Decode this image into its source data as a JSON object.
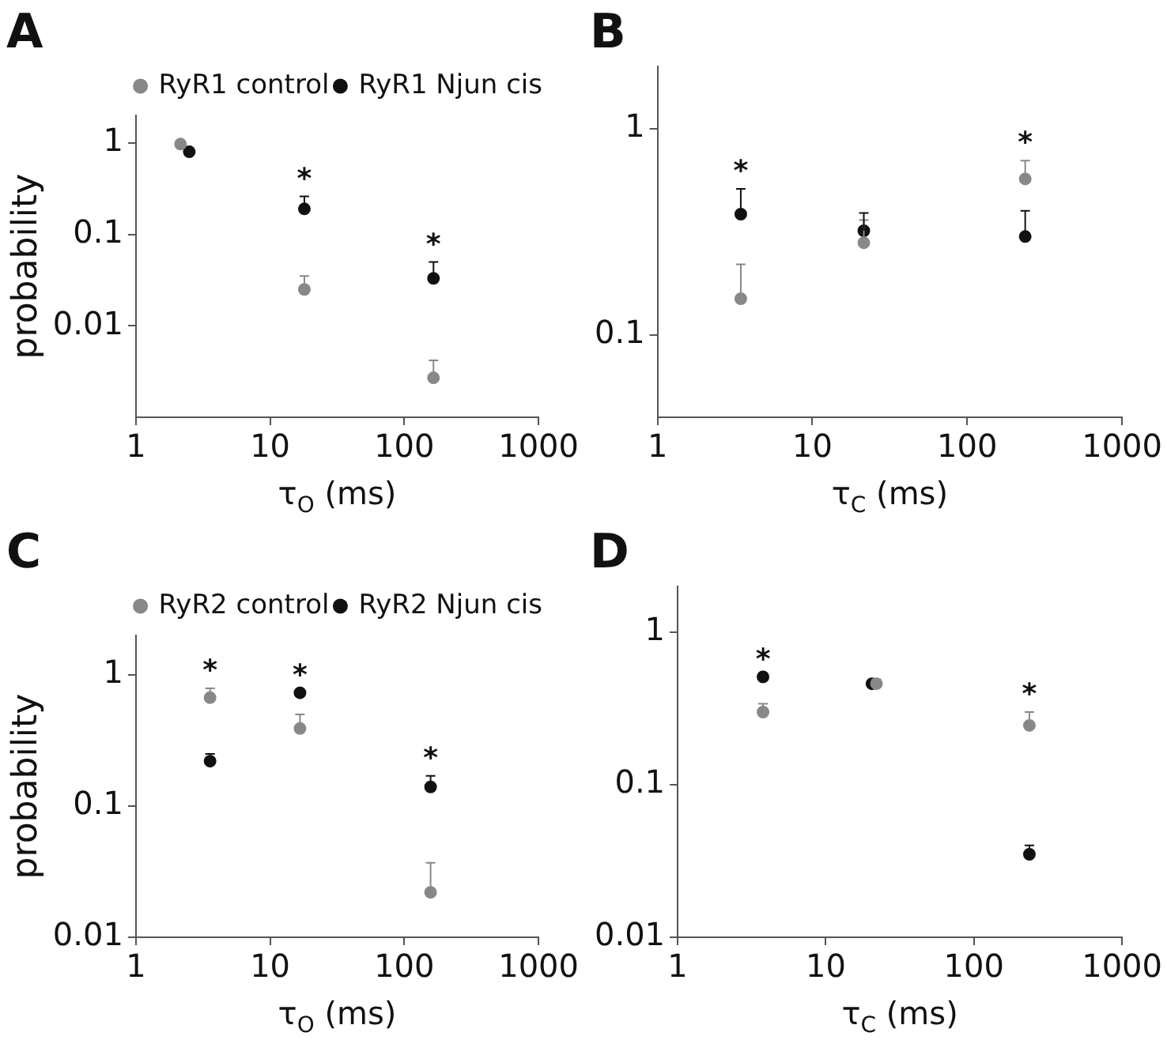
{
  "chart_data": [
    {
      "type": "scatter",
      "title": "A",
      "xlabel": "τ$_{O}$ (ms)",
      "ylabel": "probability",
      "log": "xy",
      "xlim": [
        1,
        1000
      ],
      "ylim": [
        0.001,
        2
      ],
      "xticks": [
        1,
        10,
        100,
        1000
      ],
      "yticks": [
        0.01,
        0.1,
        1
      ],
      "marker": "circle",
      "legend": "top right",
      "series": [
        {
          "name": "RyR1 control",
          "color": "#888888",
          "x": [
            2.15,
            18,
            165
          ],
          "values": [
            0.97,
            0.025,
            0.0027
          ],
          "errors": [
            null,
            [
              0.025,
              0.035
            ],
            [
              0.0027,
              0.0042
            ]
          ]
        },
        {
          "name": "RyR1 Njun cis",
          "color": "#111111",
          "x": [
            2.5,
            18,
            165
          ],
          "values": [
            0.8,
            0.19,
            0.033
          ],
          "errors": [
            null,
            [
              0.19,
              0.26
            ],
            [
              0.033,
              0.05
            ]
          ]
        }
      ],
      "annotations": [
        {
          "text": "*",
          "x": 18,
          "y": 0.19
        },
        {
          "text": "*",
          "x": 165,
          "y": 0.033
        }
      ]
    },
    {
      "type": "scatter",
      "title": "B",
      "xlabel": "τ$_{C}$ (ms)",
      "log": "xy",
      "xlim": [
        1,
        1000
      ],
      "ylim": [
        0.04,
        2
      ],
      "xticks": [
        1,
        10,
        100,
        1000
      ],
      "yticks": [
        0.1,
        1
      ],
      "marker": "circle",
      "series": [
        {
          "color": "#888888",
          "x": [
            3.45,
            21.5,
            237
          ],
          "values": [
            0.15,
            0.28,
            0.57
          ],
          "errors": [
            [
              0.15,
              0.22
            ],
            [
              0.28,
              0.36
            ],
            [
              0.57,
              0.7
            ]
          ]
        },
        {
          "color": "#111111",
          "x": [
            3.45,
            21.5,
            237
          ],
          "values": [
            0.385,
            0.32,
            0.3
          ],
          "errors": [
            [
              0.385,
              0.51
            ],
            [
              0.32,
              0.39
            ],
            [
              0.3,
              0.4
            ]
          ]
        }
      ],
      "annotations": [
        {
          "text": "*",
          "x": 3.45,
          "y": 0.385
        },
        {
          "text": "*",
          "x": 237,
          "y": 0.57
        }
      ]
    },
    {
      "type": "scatter",
      "title": "C",
      "xlabel": "τ$_{O}$ (ms)",
      "ylabel": "probability",
      "log": "xy",
      "xlim": [
        1,
        1000
      ],
      "ylim": [
        0.01,
        2
      ],
      "xticks": [
        1,
        10,
        100,
        1000
      ],
      "yticks": [
        0.01,
        0.1,
        1
      ],
      "marker": "circle",
      "legend": "top right",
      "series": [
        {
          "name": "RyR2 control",
          "color": "#888888",
          "x": [
            3.57,
            16.7,
            157
          ],
          "values": [
            0.67,
            0.39,
            0.022
          ],
          "errors": [
            [
              0.67,
              0.79
            ],
            [
              0.39,
              0.5
            ],
            [
              0.022,
              0.037
            ]
          ]
        },
        {
          "name": "RyR2 Njun cis",
          "color": "#111111",
          "x": [
            3.57,
            16.7,
            157
          ],
          "values": [
            0.22,
            0.73,
            0.14
          ],
          "errors": [
            [
              0.22,
              0.25
            ],
            null,
            [
              0.14,
              0.17
            ]
          ]
        }
      ],
      "annotations": [
        {
          "text": "*",
          "x": 3.57,
          "y": 0.67
        },
        {
          "text": "*",
          "x": 16.7,
          "y": 0.73
        },
        {
          "text": "*",
          "x": 157,
          "y": 0.14
        }
      ]
    },
    {
      "type": "scatter",
      "title": "D",
      "xlabel": "τ$_{C}$ (ms)",
      "log": "xy",
      "xlim": [
        1,
        1000
      ],
      "ylim": [
        0.01,
        2
      ],
      "xticks": [
        1,
        10,
        100,
        1000
      ],
      "yticks": [
        0.01,
        0.1,
        1
      ],
      "marker": "circle",
      "series": [
        {
          "color": "#888888",
          "x": [
            3.77,
            22,
            237
          ],
          "values": [
            0.3,
            0.46,
            0.245
          ],
          "errors": [
            [
              0.3,
              0.34
            ],
            [
              0.46,
              0.49
            ],
            [
              0.245,
              0.3
            ]
          ]
        },
        {
          "color": "#111111",
          "x": [
            3.77,
            20.5,
            237
          ],
          "values": [
            0.51,
            0.46,
            0.035
          ],
          "errors": [
            null,
            null,
            [
              0.035,
              0.04
            ]
          ]
        }
      ],
      "annotations": [
        {
          "text": "*",
          "x": 3.77,
          "y": 0.51
        },
        {
          "text": "*",
          "x": 237,
          "y": 0.245
        }
      ]
    }
  ]
}
